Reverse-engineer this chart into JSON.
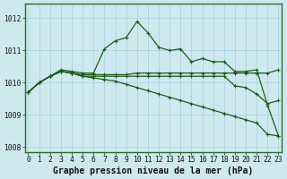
{
  "title": "Graphe pression niveau de la mer (hPa)",
  "background_color": "#cfe8ef",
  "grid_color": "#a8d0dc",
  "line_color": "#1a5c1a",
  "xlim_min": -0.3,
  "xlim_max": 23.3,
  "ylim_min": 1007.85,
  "ylim_max": 1012.45,
  "yticks": [
    1008,
    1009,
    1010,
    1011,
    1012
  ],
  "xtick_labels": [
    "0",
    "1",
    "2",
    "3",
    "4",
    "5",
    "6",
    "7",
    "8",
    "9",
    "10",
    "11",
    "12",
    "13",
    "14",
    "15",
    "16",
    "17",
    "18",
    "19",
    "20",
    "21",
    "22",
    "23"
  ],
  "series": [
    [
      1009.7,
      1010.0,
      1010.2,
      1010.4,
      1010.35,
      1010.3,
      1010.3,
      1011.05,
      1011.3,
      1011.4,
      1011.9,
      1011.55,
      1011.1,
      1011.0,
      1011.05,
      1010.65,
      1010.75,
      1010.65,
      1010.65,
      1010.35,
      1010.35,
      1010.4,
      1009.3,
      1008.35
    ],
    [
      1009.7,
      1010.0,
      1010.2,
      1010.35,
      1010.3,
      1010.25,
      1010.25,
      1010.25,
      1010.25,
      1010.25,
      1010.3,
      1010.3,
      1010.3,
      1010.3,
      1010.3,
      1010.3,
      1010.3,
      1010.3,
      1010.3,
      1010.3,
      1010.3,
      1010.3,
      1010.3,
      1010.4
    ],
    [
      1009.7,
      1010.0,
      1010.2,
      1010.35,
      1010.3,
      1010.2,
      1010.2,
      1010.2,
      1010.2,
      1010.2,
      1010.2,
      1010.2,
      1010.2,
      1010.2,
      1010.2,
      1010.2,
      1010.2,
      1010.2,
      1010.2,
      1009.9,
      1009.85,
      1009.65,
      1009.35,
      1009.45
    ],
    [
      1009.7,
      1010.0,
      1010.2,
      1010.35,
      1010.3,
      1010.2,
      1010.15,
      1010.1,
      1010.05,
      1009.95,
      1009.85,
      1009.75,
      1009.65,
      1009.55,
      1009.45,
      1009.35,
      1009.25,
      1009.15,
      1009.05,
      1008.95,
      1008.85,
      1008.75,
      1008.4,
      1008.35
    ]
  ],
  "tick_fontsize": 5.8,
  "title_fontsize": 7.0,
  "lw": 0.9,
  "marker_size": 3.0
}
